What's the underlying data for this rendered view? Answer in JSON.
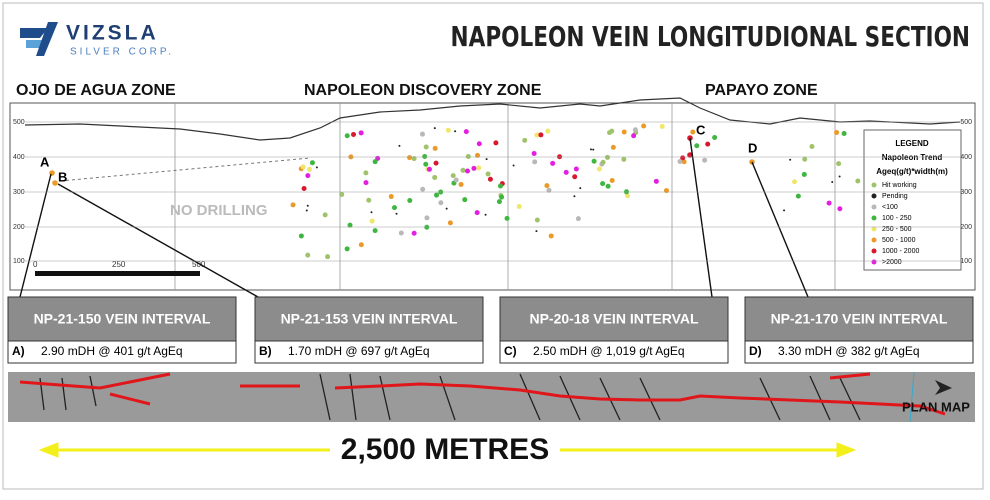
{
  "header": {
    "logo_name": "VIZSLA",
    "logo_sub": "SILVER CORP.",
    "title": "NAPOLEON VEIN LONGITUDIONAL SECTION"
  },
  "zones": [
    "OJO DE AGUA ZONE",
    "NAPOLEON DISCOVERY ZONE",
    "PAPAYO ZONE"
  ],
  "section": {
    "no_drilling": "NO DRILLING",
    "elevations": [
      "500",
      "400",
      "300",
      "200",
      "100"
    ],
    "scale": [
      "0",
      "250",
      "500"
    ],
    "points": [
      "A",
      "B",
      "C",
      "D"
    ]
  },
  "legend": {
    "title": "LEGEND",
    "subtitle": "Napoleon Trend",
    "measure": "Ageq(g/t)*width(m)",
    "items": [
      {
        "label": "Hit working",
        "color": "#9fc36a"
      },
      {
        "label": "Pending",
        "color": "#222222"
      },
      {
        "label": "<100",
        "color": "#b8b8b8"
      },
      {
        "label": "100 - 250",
        "color": "#3fb63f"
      },
      {
        "label": "250 - 500",
        "color": "#f0e66a"
      },
      {
        "label": "500 - 1000",
        "color": "#eb9a28"
      },
      {
        "label": "1000 - 2000",
        "color": "#d9182e"
      },
      {
        "label": ">2000",
        "color": "#e31ee0"
      }
    ]
  },
  "intervals": [
    {
      "hole": "NP-21-150  VEIN INTERVAL",
      "letter": "A)",
      "result": "2.90 mDH @ 401 g/t AgEq"
    },
    {
      "hole": "NP-21-153  VEIN INTERVAL",
      "letter": "B)",
      "result": "1.70 mDH @ 697 g/t AgEq"
    },
    {
      "hole": "NP-20-18  VEIN INTERVAL",
      "letter": "C)",
      "result": "2.50 mDH @ 1,019 g/t AgEq"
    },
    {
      "hole": "NP-21-170  VEIN INTERVAL",
      "letter": "D)",
      "result": "3.30 mDH @ 382 g/t AgEq"
    }
  ],
  "plan_map": {
    "label": "PLAN MAP"
  },
  "distance": "2,500 METRES"
}
